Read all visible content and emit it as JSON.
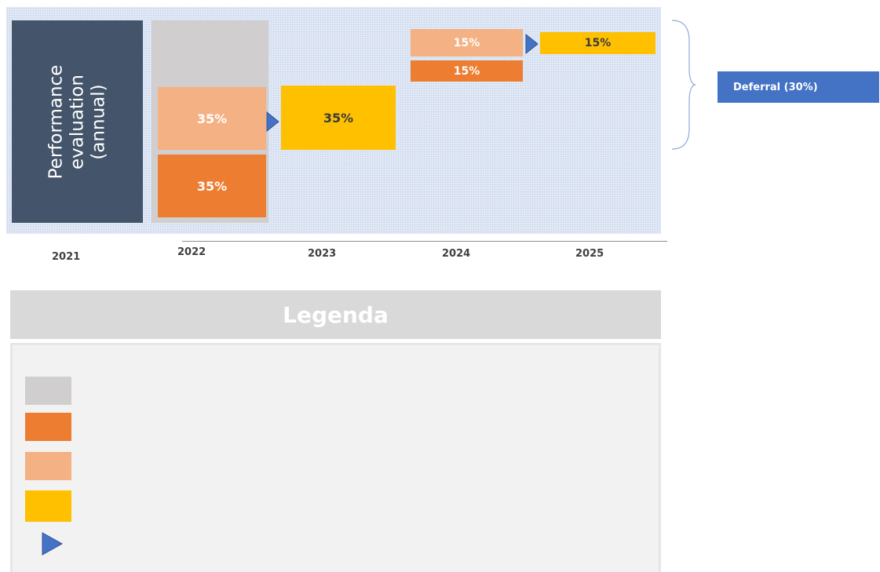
{
  "diagram": {
    "performance_label": {
      "lines": [
        "Performance",
        "evaluation",
        "(annual)"
      ]
    },
    "blocks": {
      "y2022_upfront_light": "35%",
      "y2022_upfront_dark": "35%",
      "y2023_payout": "35%",
      "y2024_light": "15%",
      "y2024_dark": "15%",
      "y2025_payout": "15%"
    },
    "years": [
      "2021",
      "2022",
      "2023",
      "2024",
      "2025"
    ],
    "deferral_label": "Deferral (30%)"
  },
  "legend": {
    "title": "Legenda",
    "swatches": [
      {
        "icon": "grey-square",
        "color": "#d0cece"
      },
      {
        "icon": "dark-orange-square",
        "color": "#ed7d31"
      },
      {
        "icon": "light-orange-square",
        "color": "#f4b183"
      },
      {
        "icon": "yellow-square",
        "color": "#ffc000"
      },
      {
        "icon": "blue-triangle-icon",
        "color": "#4472c4"
      }
    ]
  },
  "colors": {
    "navy": "#44546a",
    "grey": "#d0cece",
    "dark_orange": "#ed7d31",
    "light_orange": "#f4b183",
    "yellow": "#ffc000",
    "blue": "#4472c4"
  }
}
